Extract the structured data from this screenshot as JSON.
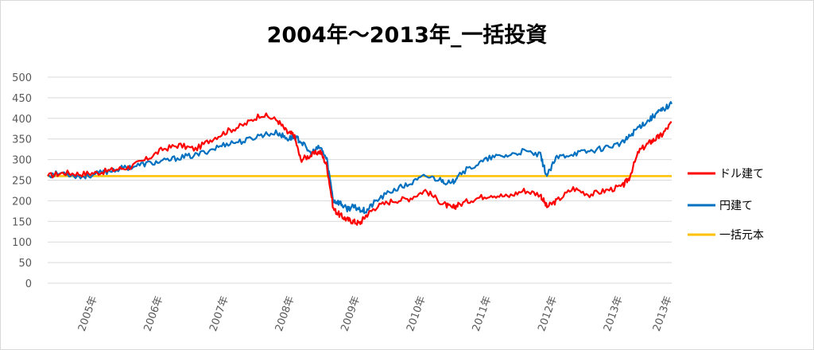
{
  "chart_data": {
    "type": "line",
    "title": "2004年～2013年_一括投資",
    "ylim": [
      0,
      500
    ],
    "y_ticks": [
      "0",
      "50",
      "100",
      "150",
      "200",
      "250",
      "300",
      "350",
      "400",
      "450",
      "500"
    ],
    "x_range": [
      2004.25,
      2013.75
    ],
    "x_ticks": [
      {
        "x": 2005,
        "label": "2005年"
      },
      {
        "x": 2006,
        "label": "2006年"
      },
      {
        "x": 2007,
        "label": "2007年"
      },
      {
        "x": 2008,
        "label": "2008年"
      },
      {
        "x": 2009,
        "label": "2009年"
      },
      {
        "x": 2010,
        "label": "2010年"
      },
      {
        "x": 2011,
        "label": "2011年"
      },
      {
        "x": 2012,
        "label": "2012年"
      },
      {
        "x": 2013,
        "label": "2013年"
      },
      {
        "x": 2013.75,
        "label": "2013年"
      }
    ],
    "grid": true,
    "legend_position": "right",
    "series": [
      {
        "name": "ドル建て",
        "color": "#ff0000",
        "x": [
          2004.25,
          2004.5,
          2004.75,
          2005.0,
          2005.25,
          2005.5,
          2005.75,
          2006.0,
          2006.25,
          2006.5,
          2006.75,
          2007.0,
          2007.25,
          2007.5,
          2007.75,
          2007.9,
          2008.0,
          2008.1,
          2008.25,
          2008.4,
          2008.5,
          2008.6,
          2008.7,
          2008.8,
          2008.9,
          2009.0,
          2009.1,
          2009.25,
          2009.5,
          2009.75,
          2010.0,
          2010.25,
          2010.4,
          2010.5,
          2010.75,
          2011.0,
          2011.25,
          2011.5,
          2011.75,
          2011.85,
          2012.0,
          2012.25,
          2012.5,
          2012.75,
          2013.0,
          2013.1,
          2013.25,
          2013.4,
          2013.5,
          2013.6,
          2013.75
        ],
        "values": [
          260,
          268,
          265,
          268,
          275,
          282,
          300,
          325,
          335,
          325,
          350,
          370,
          385,
          410,
          395,
          365,
          360,
          300,
          310,
          320,
          285,
          180,
          165,
          155,
          150,
          145,
          165,
          185,
          200,
          205,
          225,
          195,
          182,
          190,
          205,
          215,
          210,
          225,
          215,
          185,
          200,
          230,
          215,
          225,
          235,
          255,
          320,
          340,
          350,
          360,
          390
        ]
      },
      {
        "name": "円建て",
        "color": "#0070c0",
        "x": [
          2004.25,
          2004.5,
          2004.75,
          2005.0,
          2005.25,
          2005.5,
          2005.75,
          2006.0,
          2006.25,
          2006.5,
          2006.75,
          2007.0,
          2007.25,
          2007.5,
          2007.75,
          2007.9,
          2008.0,
          2008.1,
          2008.25,
          2008.4,
          2008.5,
          2008.6,
          2008.7,
          2008.8,
          2008.9,
          2009.0,
          2009.1,
          2009.25,
          2009.5,
          2009.75,
          2010.0,
          2010.25,
          2010.4,
          2010.5,
          2010.75,
          2011.0,
          2011.25,
          2011.5,
          2011.75,
          2011.85,
          2012.0,
          2012.25,
          2012.5,
          2012.75,
          2013.0,
          2013.1,
          2013.25,
          2013.4,
          2013.5,
          2013.6,
          2013.75
        ],
        "values": [
          262,
          268,
          258,
          265,
          275,
          282,
          290,
          295,
          305,
          310,
          325,
          340,
          345,
          360,
          365,
          350,
          355,
          345,
          315,
          330,
          300,
          200,
          195,
          180,
          185,
          180,
          175,
          200,
          225,
          240,
          260,
          250,
          240,
          265,
          285,
          305,
          310,
          320,
          310,
          260,
          305,
          315,
          320,
          330,
          340,
          355,
          380,
          395,
          410,
          420,
          435
        ]
      },
      {
        "name": "一括元本",
        "color": "#ffc000",
        "x": [
          2004.25,
          2013.75
        ],
        "values": [
          260,
          260
        ]
      }
    ]
  }
}
